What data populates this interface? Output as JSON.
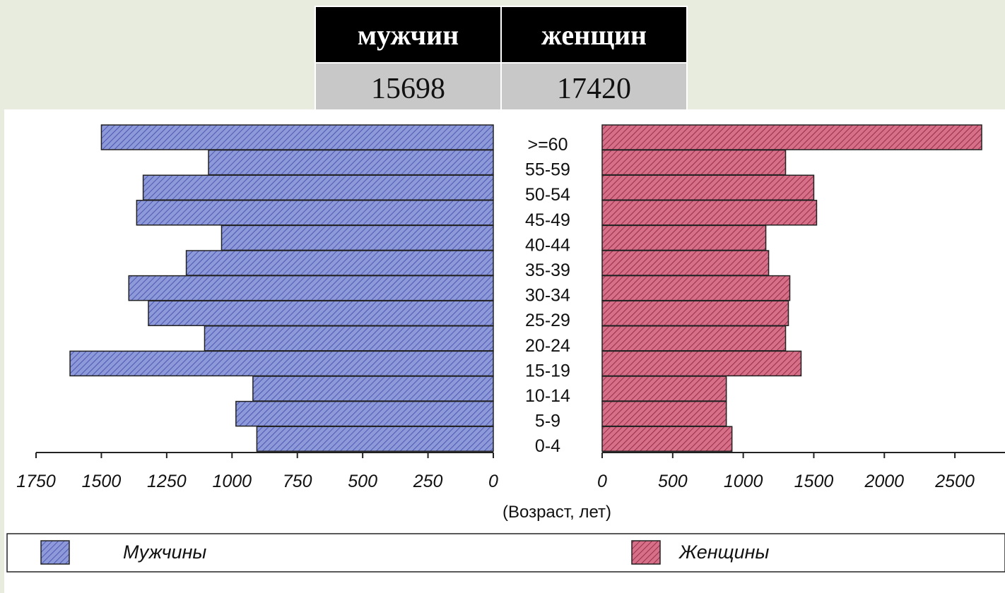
{
  "table": {
    "headers": [
      "мужчин",
      "женщин"
    ],
    "values": [
      "15698",
      "17420"
    ]
  },
  "colors": {
    "male_bar": "#8d99d9",
    "female_bar": "#d66f88",
    "table_header_bg": "#000000",
    "table_cell_bg": "#c8c8c8",
    "page_bg": "#e8ecde"
  },
  "chart_data": {
    "type": "bar",
    "orientation": "horizontal-population-pyramid",
    "categories": [
      ">=60",
      "55-59",
      "50-54",
      "45-49",
      "40-44",
      "35-39",
      "30-34",
      "25-29",
      "20-24",
      "15-19",
      "10-14",
      "5-9",
      "0-4"
    ],
    "series": [
      {
        "name": "Мужчины",
        "values": [
          1500,
          1090,
          1340,
          1365,
          1040,
          1175,
          1395,
          1320,
          1105,
          1620,
          920,
          985,
          905
        ]
      },
      {
        "name": "Женщины",
        "values": [
          2690,
          1300,
          1500,
          1520,
          1160,
          1180,
          1330,
          1320,
          1300,
          1410,
          880,
          880,
          920
        ]
      }
    ],
    "left_axis": {
      "range": [
        1750,
        0
      ],
      "ticks": [
        "1750",
        "1500",
        "1250",
        "1000",
        "750",
        "500",
        "250",
        "0"
      ]
    },
    "right_axis": {
      "range": [
        0,
        2750
      ],
      "ticks": [
        "0",
        "500",
        "1000",
        "1500",
        "2000",
        "2500"
      ]
    },
    "xlabel": "(Возраст, лет)",
    "legend": {
      "position": "bottom",
      "items": [
        "Мужчины",
        "Женщины"
      ]
    }
  }
}
